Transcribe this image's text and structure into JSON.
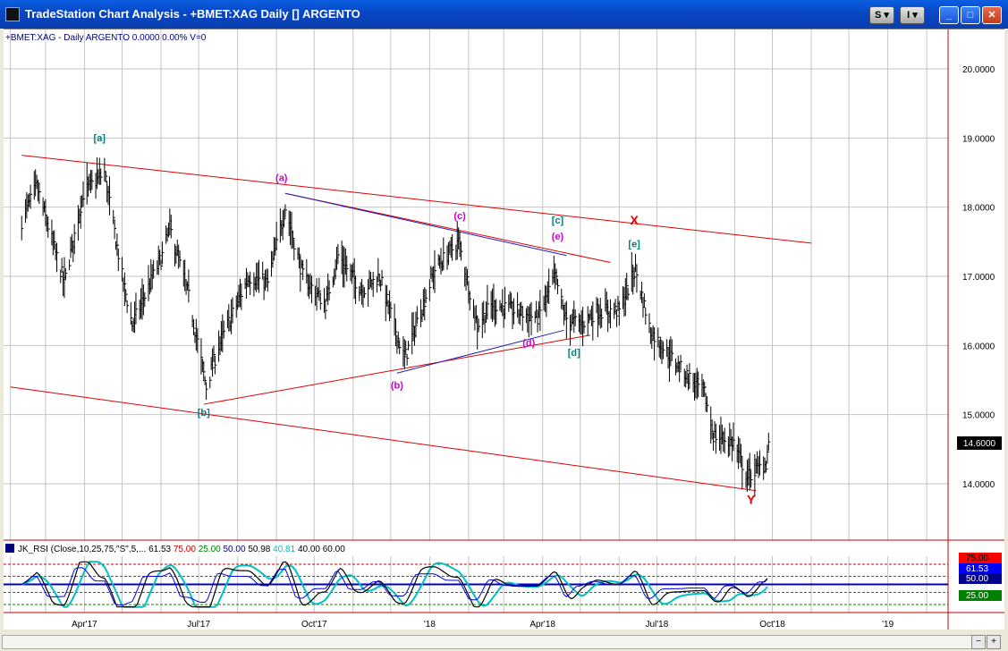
{
  "window": {
    "title": "TradeStation Chart Analysis - +BMET:XAG Daily [] ARGENTO",
    "buttons": {
      "s_label": "S",
      "i_label": "I"
    }
  },
  "chart": {
    "header": "+BMET:XAG - Daily  ARGENTO  0.0000  0.00%  V=0",
    "last_price": "14.6000",
    "colors": {
      "bars": "#000000",
      "trendline": "#e00000",
      "blue_line": "#2020c0",
      "grid": "#b8b8b8",
      "price_tag": "#000000"
    }
  },
  "chart_data": [
    {
      "type": "ohlc",
      "x_ticks": [
        "Apr'17",
        "Jul'17",
        "Oct'17",
        "'18",
        "Apr'18",
        "Jul'18",
        "Oct'18",
        "'19"
      ],
      "y_ticks": [
        "20.0000",
        "19.0000",
        "18.0000",
        "17.0000",
        "16.0000",
        "15.0000",
        "14.0000"
      ],
      "ylim": [
        13.2,
        20.6
      ],
      "close_path": [
        {
          "x": "2017-02-10",
          "y": 17.8
        },
        {
          "x": "2017-02-22",
          "y": 18.3
        },
        {
          "x": "2017-03-08",
          "y": 17.4
        },
        {
          "x": "2017-03-16",
          "y": 16.9
        },
        {
          "x": "2017-03-31",
          "y": 18.2
        },
        {
          "x": "2017-04-17",
          "y": 18.5
        },
        {
          "x": "2017-05-01",
          "y": 17.0
        },
        {
          "x": "2017-05-09",
          "y": 16.3
        },
        {
          "x": "2017-06-02",
          "y": 17.3
        },
        {
          "x": "2017-06-08",
          "y": 17.7
        },
        {
          "x": "2017-06-23",
          "y": 16.7
        },
        {
          "x": "2017-07-07",
          "y": 15.4
        },
        {
          "x": "2017-07-17",
          "y": 16.0
        },
        {
          "x": "2017-08-10",
          "y": 17.0
        },
        {
          "x": "2017-08-25",
          "y": 16.9
        },
        {
          "x": "2017-09-08",
          "y": 18.0
        },
        {
          "x": "2017-09-22",
          "y": 17.0
        },
        {
          "x": "2017-10-10",
          "y": 16.6
        },
        {
          "x": "2017-10-20",
          "y": 17.3
        },
        {
          "x": "2017-11-08",
          "y": 16.8
        },
        {
          "x": "2017-11-22",
          "y": 17.0
        },
        {
          "x": "2017-12-12",
          "y": 15.8
        },
        {
          "x": "2018-01-05",
          "y": 17.1
        },
        {
          "x": "2018-01-24",
          "y": 17.5
        },
        {
          "x": "2018-02-08",
          "y": 16.3
        },
        {
          "x": "2018-02-20",
          "y": 16.6
        },
        {
          "x": "2018-03-09",
          "y": 16.5
        },
        {
          "x": "2018-03-28",
          "y": 16.4
        },
        {
          "x": "2018-04-11",
          "y": 17.0
        },
        {
          "x": "2018-04-19",
          "y": 16.4
        },
        {
          "x": "2018-05-01",
          "y": 16.3
        },
        {
          "x": "2018-05-14",
          "y": 16.5
        },
        {
          "x": "2018-06-01",
          "y": 16.5
        },
        {
          "x": "2018-06-14",
          "y": 17.1
        },
        {
          "x": "2018-06-26",
          "y": 16.2
        },
        {
          "x": "2018-07-18",
          "y": 15.7
        },
        {
          "x": "2018-08-08",
          "y": 15.3
        },
        {
          "x": "2018-08-15",
          "y": 14.7
        },
        {
          "x": "2018-08-31",
          "y": 14.6
        },
        {
          "x": "2018-09-11",
          "y": 14.1
        },
        {
          "x": "2018-09-26",
          "y": 14.3
        },
        {
          "x": "2018-09-28",
          "y": 14.6
        }
      ],
      "trendlines": [
        {
          "name": "upper-channel",
          "start": {
            "x": "2017-02-10",
            "y": 18.75
          },
          "end": {
            "x": "2018-11-01",
            "y": 17.48
          }
        },
        {
          "name": "lower-channel",
          "start": {
            "x": "2017-02-01",
            "y": 15.4
          },
          "end": {
            "x": "2018-09-18",
            "y": 13.9
          }
        },
        {
          "name": "triangle-top",
          "start": {
            "x": "2017-09-08",
            "y": 18.2
          },
          "end": {
            "x": "2018-05-25",
            "y": 17.2
          }
        },
        {
          "name": "triangle-bottom",
          "start": {
            "x": "2017-07-05",
            "y": 15.15
          },
          "end": {
            "x": "2018-05-09",
            "y": 16.15
          }
        }
      ],
      "blue_lines": [
        {
          "start": {
            "x": "2017-09-08",
            "y": 18.2
          },
          "end": {
            "x": "2018-04-20",
            "y": 17.3
          }
        },
        {
          "start": {
            "x": "2017-12-06",
            "y": 15.6
          },
          "end": {
            "x": "2018-04-18",
            "y": 16.22
          }
        }
      ],
      "wave_labels": [
        {
          "text": "[a]",
          "x": "2017-04-13",
          "y": 18.95,
          "color": "#008080"
        },
        {
          "text": "[b]",
          "x": "2017-07-05",
          "y": 14.98,
          "color": "#008080"
        },
        {
          "text": "(a)",
          "x": "2017-09-05",
          "y": 18.38,
          "color": "#d000d0"
        },
        {
          "text": "(b)",
          "x": "2017-12-06",
          "y": 15.38,
          "color": "#d000d0"
        },
        {
          "text": "(c)",
          "x": "2018-01-25",
          "y": 17.83,
          "color": "#d000d0"
        },
        {
          "text": "(d)",
          "x": "2018-03-21",
          "y": 15.99,
          "color": "#d000d0"
        },
        {
          "text": "(e)",
          "x": "2018-04-13",
          "y": 17.53,
          "color": "#d000d0"
        },
        {
          "text": "[c]",
          "x": "2018-04-13",
          "y": 17.76,
          "color": "#008080"
        },
        {
          "text": "[d]",
          "x": "2018-04-26",
          "y": 15.85,
          "color": "#008080"
        },
        {
          "text": "[e]",
          "x": "2018-06-13",
          "y": 17.42,
          "color": "#008080"
        },
        {
          "text": "X",
          "x": "2018-06-13",
          "y": 17.75,
          "color": "#e00000"
        },
        {
          "text": "Y",
          "x": "2018-09-14",
          "y": 13.71,
          "color": "#e00000"
        }
      ]
    },
    {
      "type": "line",
      "title": "JK_RSI (Close,10,25,75,\"S\",5,...",
      "legend_values": [
        {
          "text": "61.53",
          "color": "#000000"
        },
        {
          "text": "75.00",
          "color": "#d00000"
        },
        {
          "text": "25.00",
          "color": "#008000"
        },
        {
          "text": "50.00",
          "color": "#000080"
        },
        {
          "text": "50.98",
          "color": "#000000"
        },
        {
          "text": "40.81",
          "color": "#00c0c0"
        },
        {
          "text": "40.00",
          "color": "#000000"
        },
        {
          "text": "60.00",
          "color": "#000000"
        }
      ],
      "axis_tags": [
        {
          "text": "75.00",
          "bg": "#ff0000",
          "fg": "#000000"
        },
        {
          "text": "61.53",
          "bg": "#0000ff",
          "fg": "#ffffff"
        },
        {
          "text": "50.00",
          "bg": "#00008b",
          "fg": "#ffffff"
        },
        {
          "text": "25.00",
          "bg": "#008000",
          "fg": "#ffffff"
        }
      ],
      "levels": [
        75,
        60,
        50,
        40,
        25
      ],
      "ylim": [
        15,
        85
      ]
    }
  ]
}
